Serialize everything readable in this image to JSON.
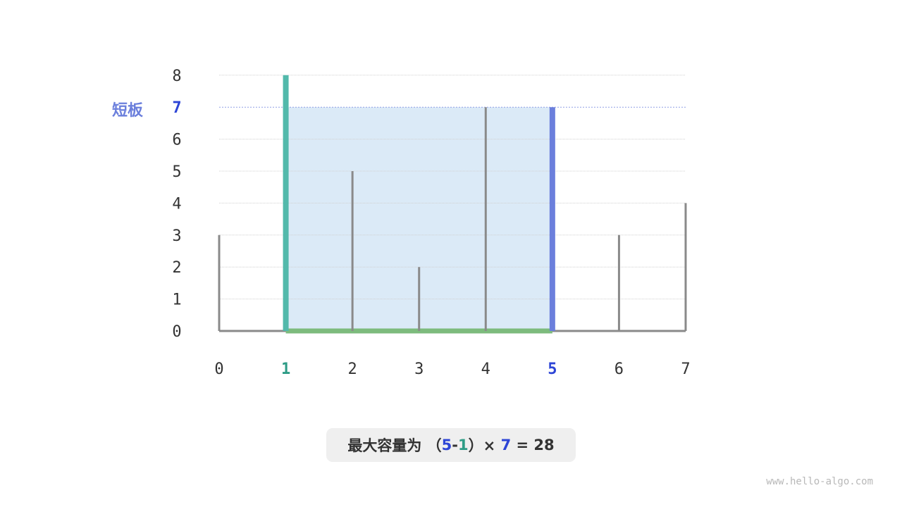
{
  "chart_data": {
    "type": "bar",
    "x": [
      0,
      1,
      2,
      3,
      4,
      5,
      6,
      7
    ],
    "heights": [
      3,
      8,
      5,
      2,
      7,
      7,
      3,
      4
    ],
    "ylim": [
      0,
      8
    ],
    "yticks": [
      0,
      1,
      2,
      3,
      4,
      5,
      6,
      7,
      8
    ],
    "grid": true,
    "left_index": 1,
    "right_index": 5,
    "water_level": 7,
    "short_board_label": "短板",
    "colors": {
      "bar": "#8a8a8a",
      "left": "#52b9ab",
      "right": "#6b7fdc",
      "base": "#7dbb7d",
      "water": "#dbeaf7",
      "left_text": "#2e9c86",
      "right_text": "#2d45d6"
    }
  },
  "caption": {
    "prefix": "最大容量为 （",
    "right": "5",
    "minus": "-",
    "left": "1",
    "close_times": "）× ",
    "height": "7",
    "equals_result": " = 28"
  },
  "watermark": "www.hello-algo.com"
}
